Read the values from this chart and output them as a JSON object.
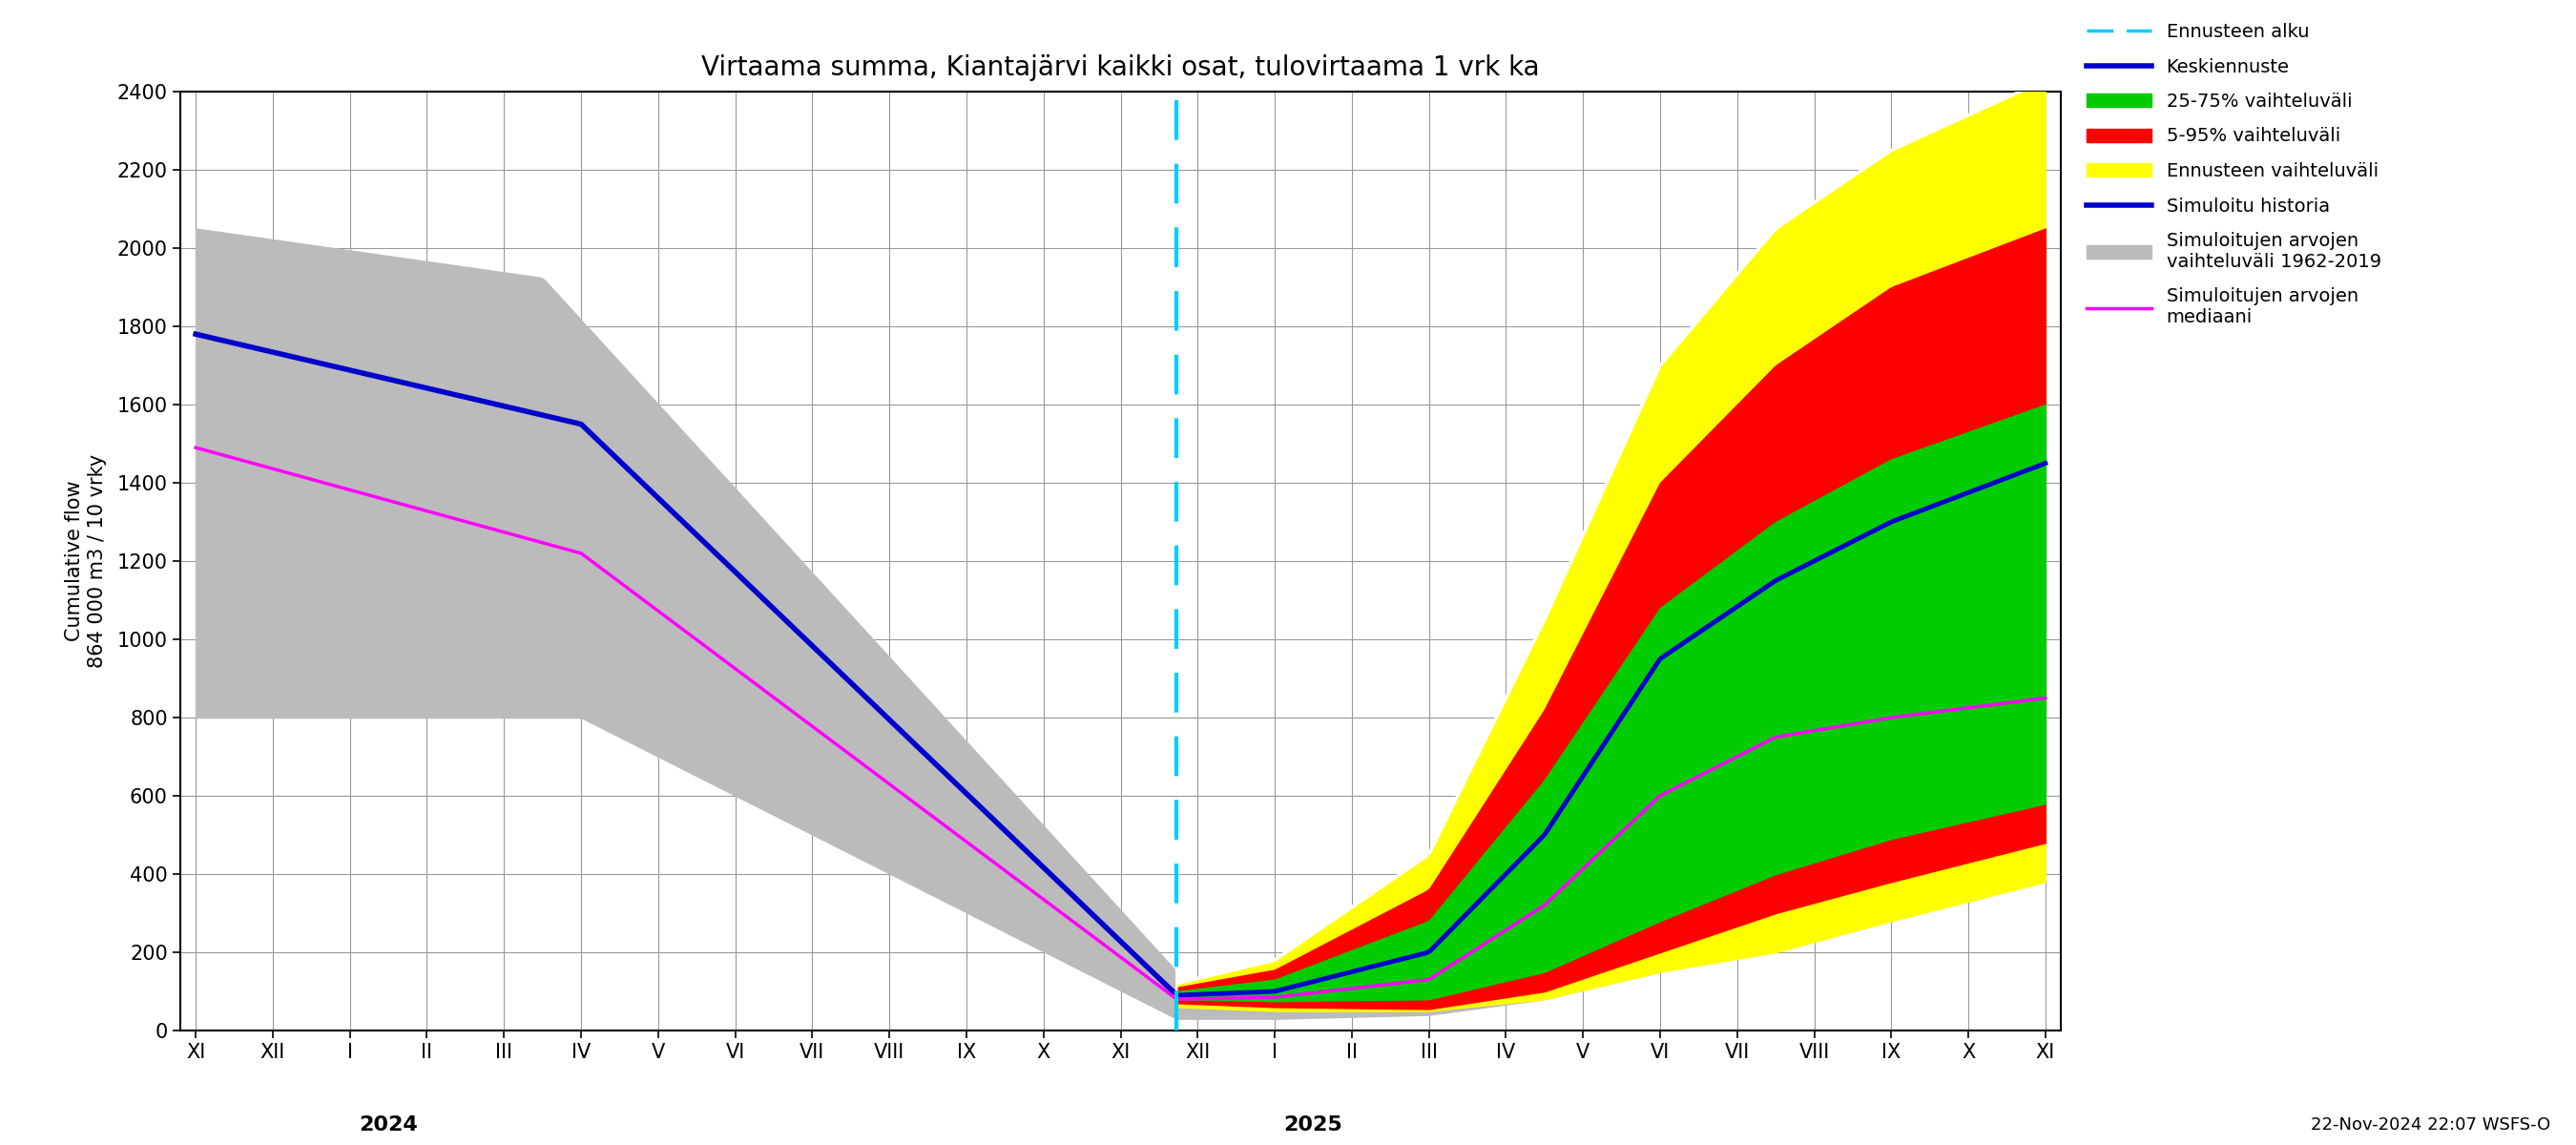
{
  "title": "Virtaama summa, Kiantajärvi kaikki osat, tulovirtaama 1 vrk ka",
  "ylabel1": "Cumulative flow",
  "ylabel2": "864 000 m3 / 10 vrky",
  "ylim": [
    0,
    2400
  ],
  "yticks": [
    0,
    200,
    400,
    600,
    800,
    1000,
    1200,
    1400,
    1600,
    1800,
    2000,
    2200,
    2400
  ],
  "background_color": "#ffffff",
  "grid_color": "#999999",
  "forecast_start_x": 12.73,
  "timestamp_label": "22-Nov-2024 22:07 WSFS-O",
  "x_tick_labels": [
    "XI",
    "XII",
    "I",
    "II",
    "III",
    "IV",
    "V",
    "VI",
    "VII",
    "VIII",
    "IX",
    "X",
    "XI",
    "XII",
    "I",
    "II",
    "III",
    "IV",
    "V",
    "VI",
    "VII",
    "VIII",
    "IX",
    "X",
    "XI"
  ],
  "x_tick_positions": [
    0,
    1,
    2,
    3,
    4,
    5,
    6,
    7,
    8,
    9,
    10,
    11,
    12,
    13,
    14,
    15,
    16,
    17,
    18,
    19,
    20,
    21,
    22,
    23,
    24
  ],
  "year_2024_x": 2.5,
  "year_2025_x": 14.5,
  "colors": {
    "blue": "#0000cc",
    "magenta": "#ff00ff",
    "cyan": "#00ccff",
    "yellow": "#ffff00",
    "red": "#ff0000",
    "green": "#00cc00",
    "gray": "#bbbbbb",
    "white": "#ffffff"
  }
}
